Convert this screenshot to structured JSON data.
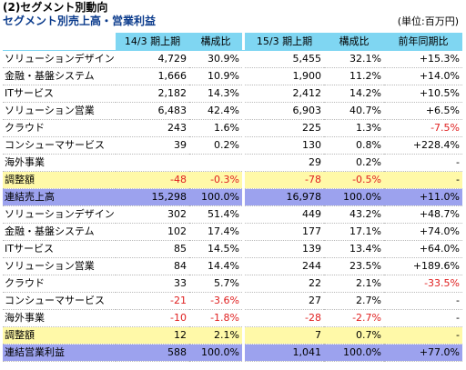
{
  "heading": "(2)セグメント別動向",
  "subtitle": "セグメント別売上高・営業利益",
  "unit": "(単位:百万円)",
  "columns": [
    "",
    "14/3 期上期",
    "構成比",
    "15/3 期上期",
    "構成比",
    "前年同期比"
  ],
  "rows": [
    {
      "label": "ソリューションデザイン",
      "v1": "4,729",
      "r1": "30.9%",
      "v2": "5,455",
      "r2": "32.1%",
      "yoy": "+15.3%",
      "type": ""
    },
    {
      "label": "金融・基盤システム",
      "v1": "1,666",
      "r1": "10.9%",
      "v2": "1,900",
      "r2": "11.2%",
      "yoy": "+14.0%",
      "type": ""
    },
    {
      "label": "ITサービス",
      "v1": "2,182",
      "r1": "14.3%",
      "v2": "2,412",
      "r2": "14.2%",
      "yoy": "+10.5%",
      "type": ""
    },
    {
      "label": "ソリューション営業",
      "v1": "6,483",
      "r1": "42.4%",
      "v2": "6,903",
      "r2": "40.7%",
      "yoy": "+6.5%",
      "type": ""
    },
    {
      "label": "クラウド",
      "v1": "243",
      "r1": "1.6%",
      "v2": "225",
      "r2": "1.3%",
      "yoy": "-7.5%",
      "type": ""
    },
    {
      "label": "コンシューマサービス",
      "v1": "39",
      "r1": "0.2%",
      "v2": "130",
      "r2": "0.8%",
      "yoy": "+228.4%",
      "type": ""
    },
    {
      "label": "海外事業",
      "v1": "",
      "r1": "",
      "v2": "29",
      "r2": "0.2%",
      "yoy": "-",
      "type": ""
    },
    {
      "label": "調整額",
      "v1": "-48",
      "r1": "-0.3%",
      "v2": "-78",
      "r2": "-0.5%",
      "yoy": "-",
      "type": "adj"
    },
    {
      "label": "連結売上高",
      "v1": "15,298",
      "r1": "100.0%",
      "v2": "16,978",
      "r2": "100.0%",
      "yoy": "+11.0%",
      "type": "tot"
    },
    {
      "label": "ソリューションデザイン",
      "v1": "302",
      "r1": "51.4%",
      "v2": "449",
      "r2": "43.2%",
      "yoy": "+48.7%",
      "type": ""
    },
    {
      "label": "金融・基盤システム",
      "v1": "102",
      "r1": "17.4%",
      "v2": "177",
      "r2": "17.1%",
      "yoy": "+74.0%",
      "type": ""
    },
    {
      "label": "ITサービス",
      "v1": "85",
      "r1": "14.5%",
      "v2": "139",
      "r2": "13.4%",
      "yoy": "+64.0%",
      "type": ""
    },
    {
      "label": "ソリューション営業",
      "v1": "84",
      "r1": "14.4%",
      "v2": "244",
      "r2": "23.5%",
      "yoy": "+189.6%",
      "type": ""
    },
    {
      "label": "クラウド",
      "v1": "33",
      "r1": "5.7%",
      "v2": "22",
      "r2": "2.1%",
      "yoy": "-33.5%",
      "type": ""
    },
    {
      "label": "コンシューマサービス",
      "v1": "-21",
      "r1": "-3.6%",
      "v2": "27",
      "r2": "2.7%",
      "yoy": "-",
      "type": ""
    },
    {
      "label": "海外事業",
      "v1": "-10",
      "r1": "-1.8%",
      "v2": "-28",
      "r2": "-2.7%",
      "yoy": "-",
      "type": ""
    },
    {
      "label": "調整額",
      "v1": "12",
      "r1": "2.1%",
      "v2": "7",
      "r2": "0.7%",
      "yoy": "-",
      "type": "adj"
    },
    {
      "label": "連結営業利益",
      "v1": "588",
      "r1": "100.0%",
      "v2": "1,041",
      "r2": "100.0%",
      "yoy": "+77.0%",
      "type": "tot"
    }
  ]
}
